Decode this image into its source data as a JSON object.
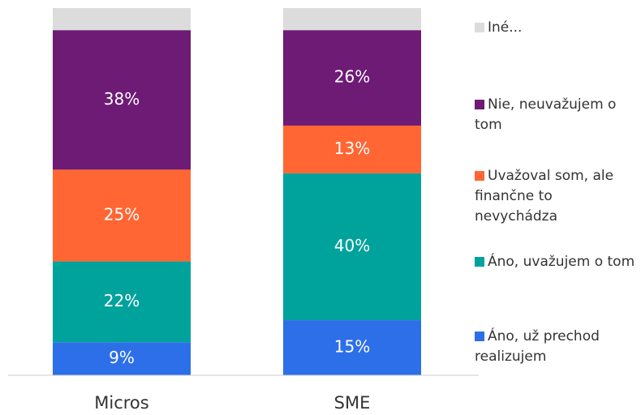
{
  "chart_data": {
    "type": "stacked_bar",
    "categories": [
      "Micros",
      "SME"
    ],
    "ylim": [
      0,
      100
    ],
    "series": [
      {
        "name": "Áno, už prechod realizujem",
        "color": "#2d6fe8",
        "values": [
          9,
          15
        ],
        "value_labels": [
          "9%",
          "15%"
        ]
      },
      {
        "name": "Áno, uvažujem o tom",
        "color": "#00a39c",
        "values": [
          22,
          40
        ],
        "value_labels": [
          "22%",
          "40%"
        ]
      },
      {
        "name": "Uvažoval som, ale finančne to nevychádza",
        "color": "#ff6633",
        "values": [
          25,
          13
        ],
        "value_labels": [
          "25%",
          "13%"
        ]
      },
      {
        "name": "Nie, neuvažujem o tom",
        "color": "#6d1b75",
        "values": [
          38,
          26
        ],
        "value_labels": [
          "38%",
          "26%"
        ]
      },
      {
        "name": "Iné...",
        "color": "#dcdcdc",
        "values": [
          6,
          6
        ]
      }
    ],
    "legend": "right"
  }
}
